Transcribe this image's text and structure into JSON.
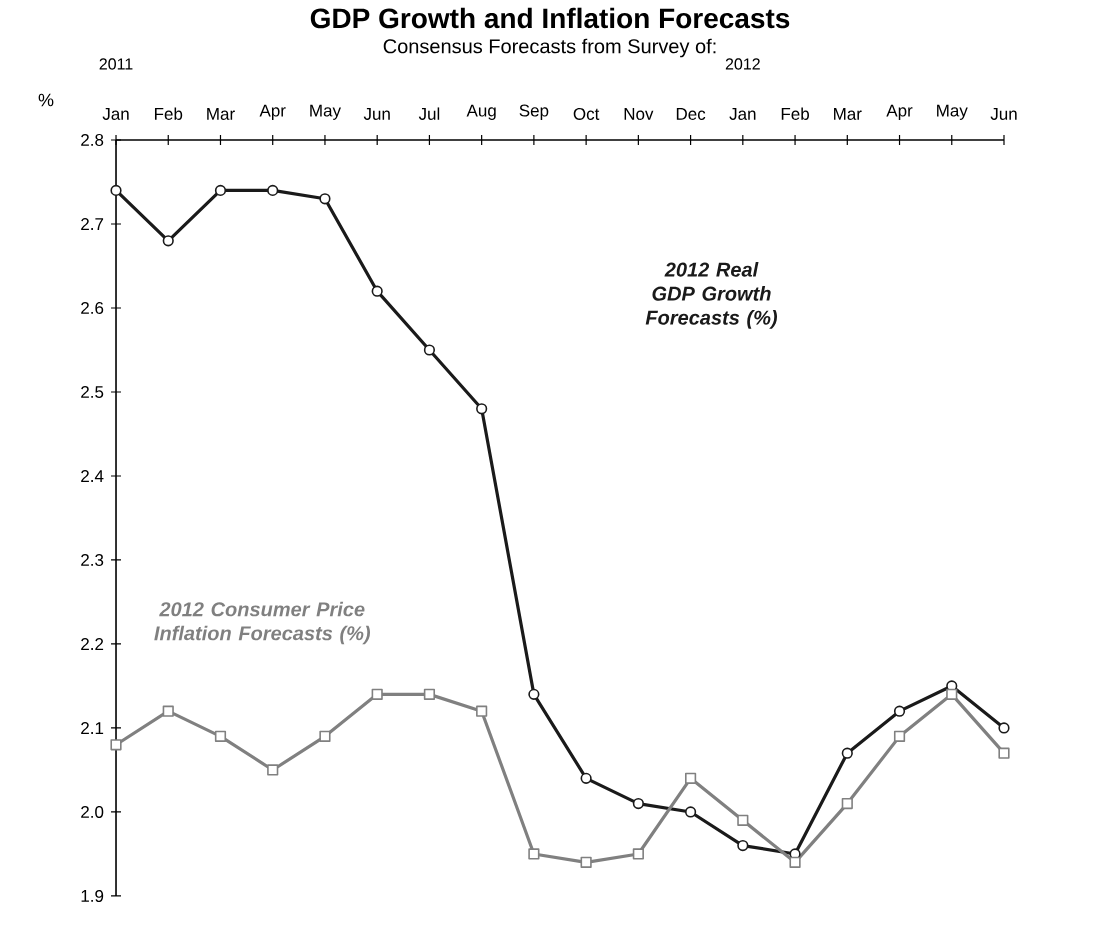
{
  "chart_data": {
    "type": "line",
    "title": "GDP Growth and Inflation Forecasts",
    "subtitle": "Consensus Forecasts from Survey of:",
    "ylabel": "%",
    "categories": [
      "Jan",
      "Feb",
      "Mar",
      "Apr",
      "May",
      "Jun",
      "Jul",
      "Aug",
      "Sep",
      "Oct",
      "Nov",
      "Dec",
      "Jan",
      "Feb",
      "Mar",
      "Apr",
      "May",
      "Jun"
    ],
    "annotations": [
      "2011",
      "2012"
    ],
    "series": [
      {
        "name": "2012 Real GDP Growth Forecasts (%)",
        "color": "#1a1a1a",
        "marker": "circle",
        "values": [
          2.74,
          2.68,
          2.74,
          2.74,
          2.73,
          2.62,
          2.55,
          2.48,
          2.14,
          2.04,
          2.01,
          2.0,
          1.96,
          1.95,
          2.07,
          2.12,
          2.15,
          2.1
        ]
      },
      {
        "name": "2012 Consumer Price Inflation Forecasts (%)",
        "color": "#808080",
        "marker": "square",
        "values": [
          2.08,
          2.12,
          2.09,
          2.05,
          2.09,
          2.14,
          2.14,
          2.12,
          1.95,
          1.94,
          1.95,
          2.04,
          1.99,
          1.94,
          2.01,
          2.09,
          2.14,
          2.07
        ]
      }
    ],
    "ylim": [
      1.9,
      2.8
    ],
    "yticks": [
      1.9,
      {
        "value": 2.0,
        "label": "2.0"
      },
      2.1,
      2.2,
      2.3,
      2.4,
      2.5,
      2.6,
      2.7,
      2.8
    ],
    "line_style": "solid"
  }
}
